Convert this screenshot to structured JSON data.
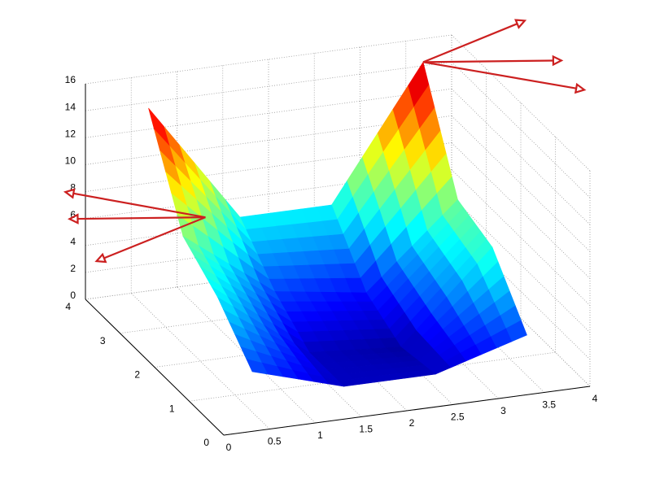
{
  "chart_data": {
    "type": "surface3d",
    "xlim": [
      0,
      4
    ],
    "ylim": [
      0,
      4
    ],
    "zlim": [
      0,
      16
    ],
    "xticks": [
      0,
      0.5,
      1,
      1.5,
      2,
      2.5,
      3,
      3.5,
      4
    ],
    "yticks": [
      0,
      1,
      2,
      3,
      4
    ],
    "zticks": [
      0,
      2,
      4,
      6,
      8,
      10,
      12,
      14,
      16
    ],
    "grid": true,
    "colormap": "jet",
    "surface": {
      "x": [
        0.5,
        1.5,
        2.5,
        3.5
      ],
      "y": [
        0.5,
        1.5,
        2.5,
        3.5
      ],
      "z": [
        [
          3,
          1,
          1,
          3
        ],
        [
          6,
          1,
          0.5,
          7
        ],
        [
          8,
          3,
          2,
          8
        ],
        [
          15,
          6,
          6,
          15.7
        ]
      ]
    },
    "quiver": {
      "color": "#cc2020",
      "x": [
        0.48,
        0.48,
        0.48,
        3.5,
        3.5,
        3.5
      ],
      "y": [
        1.8,
        1.8,
        1.8,
        3.5,
        3.5,
        3.5
      ],
      "z": [
        11.2,
        11.2,
        11.2,
        15.7,
        15.7,
        15.7
      ],
      "u": [
        0,
        0,
        0,
        1.11,
        1.51,
        1.76
      ],
      "v": [
        4.05,
        3.93,
        3.15,
        0,
        0,
        0
      ],
      "w": [
        -8.33,
        -10.03,
        -11.2,
        2.07,
        -1.25,
        -3.65
      ]
    }
  }
}
